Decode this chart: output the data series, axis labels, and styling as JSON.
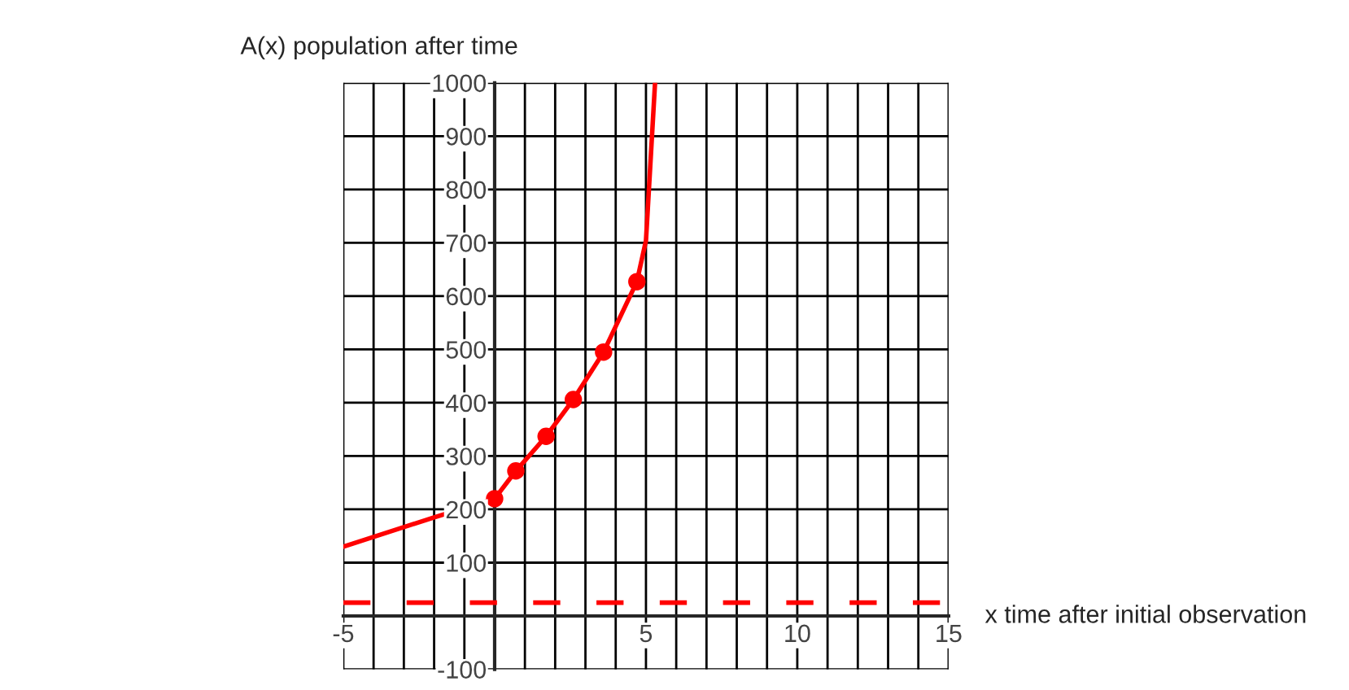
{
  "chart_data": {
    "type": "line",
    "xlabel": "x time after initial observation",
    "ylabel": "A(x) population after time",
    "series": [
      {
        "color": "#ff0000",
        "x": [
          -5,
          -2,
          0,
          0.7,
          1.7,
          2.6,
          3.6,
          4.7,
          5,
          5.15,
          5.3
        ],
        "values": [
          130,
          185,
          220,
          272,
          337,
          406,
          495,
          627,
          704,
          852,
          1000
        ]
      },
      {
        "type": "scatter",
        "color": "#ff0000",
        "marker": "circle",
        "x": [
          0,
          0.7,
          1.7,
          2.6,
          3.6,
          4.7
        ],
        "values": [
          220,
          272,
          337,
          406,
          495,
          627
        ]
      },
      {
        "color": "#ff0000",
        "line_style": "dashed",
        "x": [
          -5,
          15
        ],
        "values": [
          25,
          25
        ]
      }
    ],
    "xlim": [
      -5,
      15
    ],
    "ylim": [
      -100,
      1000
    ],
    "xticks": [
      -5,
      {
        "value": -4,
        "label": null
      },
      {
        "value": -3,
        "label": null
      },
      {
        "value": -2,
        "label": null
      },
      {
        "value": -1,
        "label": null
      },
      {
        "value": 0,
        "label": null
      },
      {
        "value": 1,
        "label": null
      },
      {
        "value": 2,
        "label": null
      },
      {
        "value": 3,
        "label": null
      },
      {
        "value": 4,
        "label": null
      },
      5,
      {
        "value": 6,
        "label": null
      },
      {
        "value": 7,
        "label": null
      },
      {
        "value": 8,
        "label": null
      },
      {
        "value": 9,
        "label": null
      },
      10,
      {
        "value": 11,
        "label": null
      },
      {
        "value": 12,
        "label": null
      },
      {
        "value": 13,
        "label": null
      },
      {
        "value": 14,
        "label": null
      },
      15
    ],
    "yticks": [
      -100,
      {
        "value": 0,
        "label": null
      },
      100,
      200,
      300,
      400,
      500,
      600,
      700,
      800,
      900,
      1000
    ],
    "grid": true
  }
}
